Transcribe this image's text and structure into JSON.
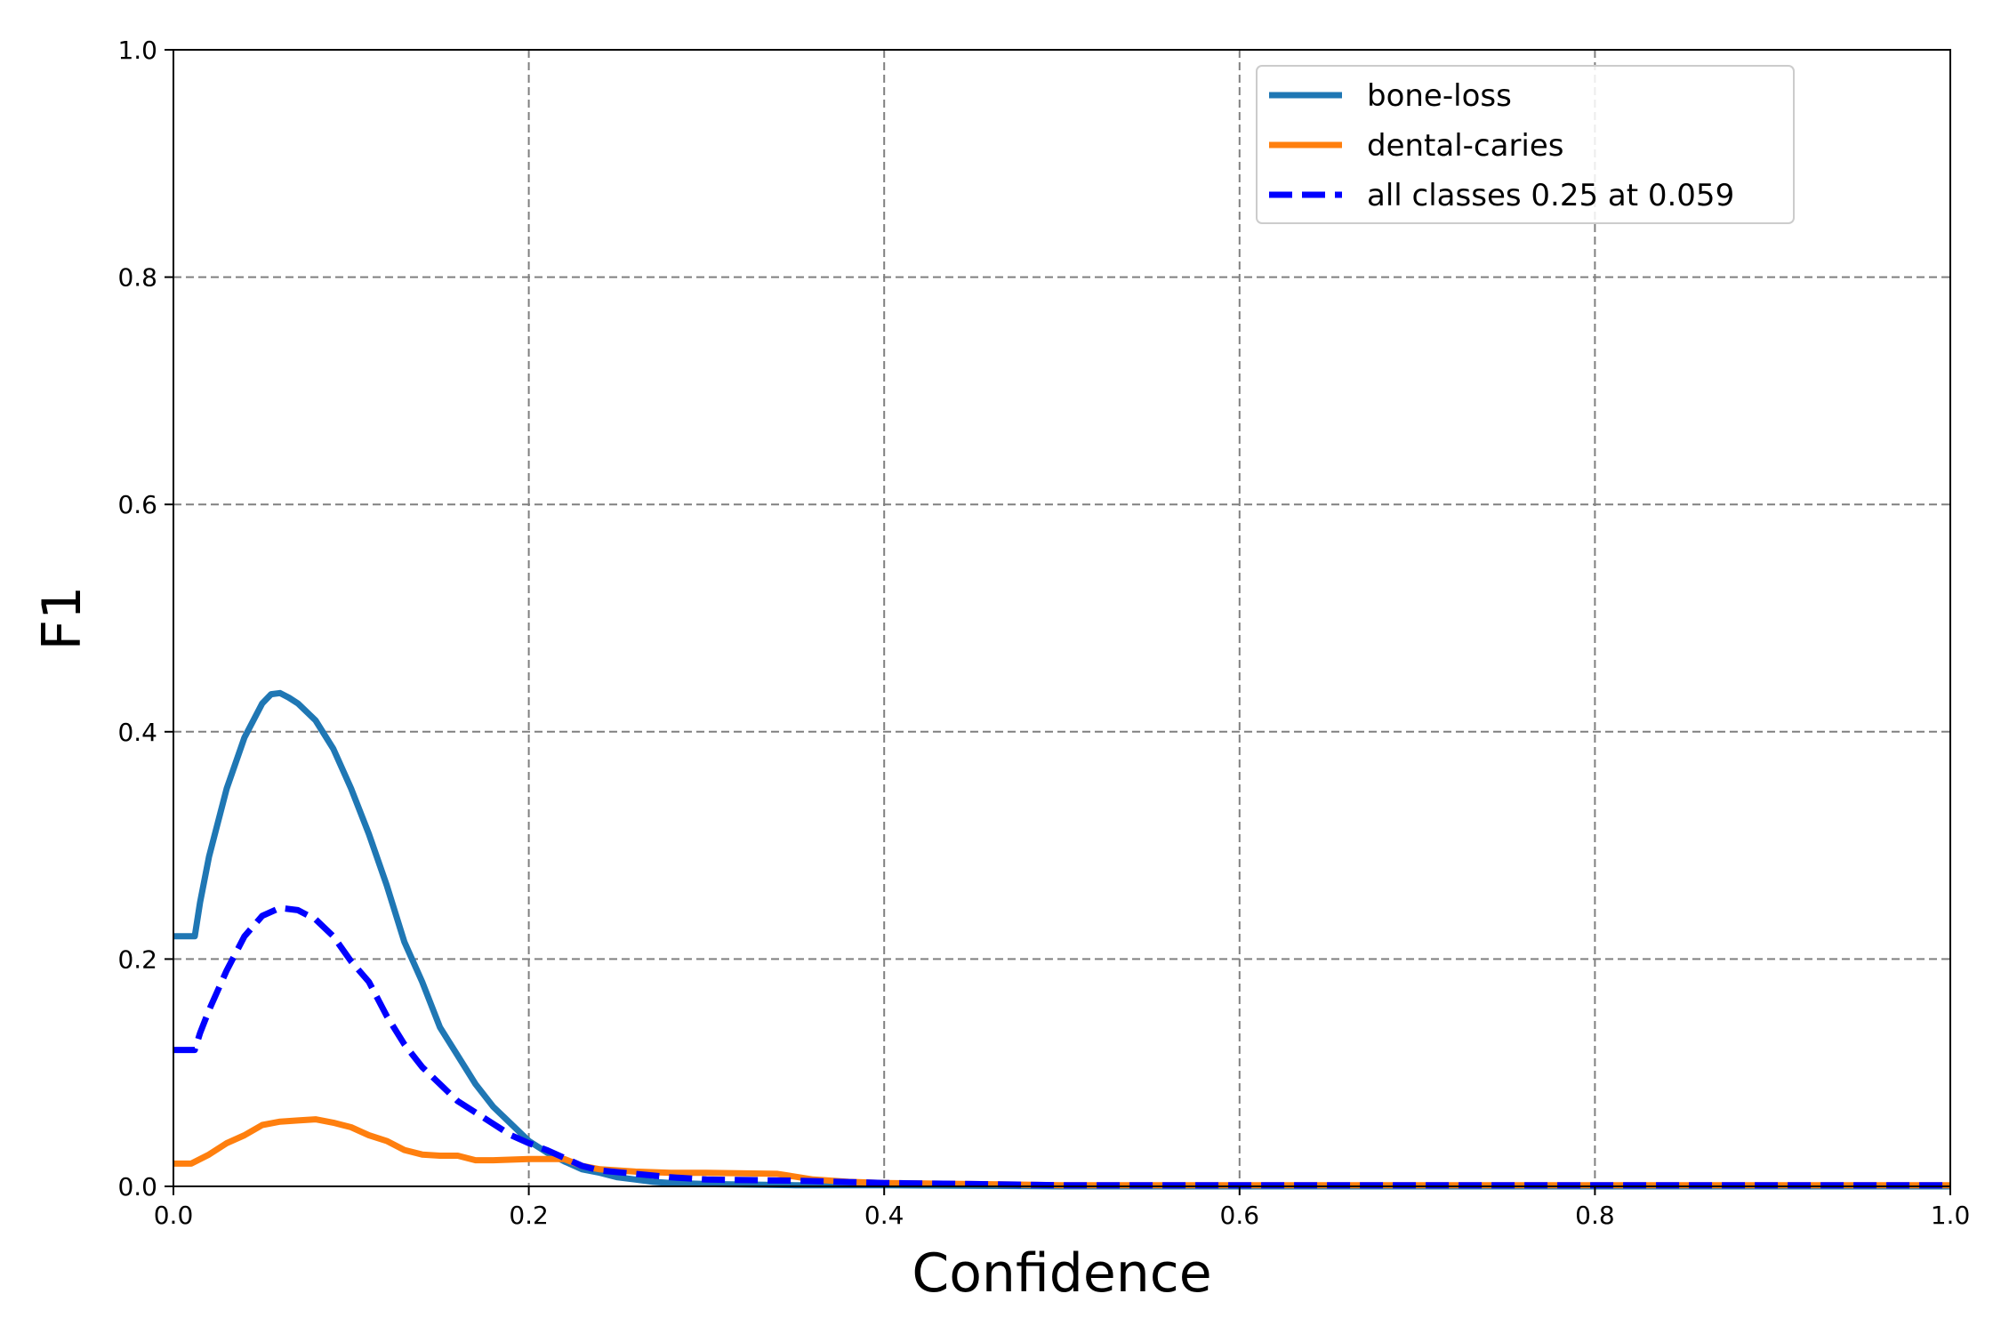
{
  "chart_data": {
    "type": "line",
    "title": "",
    "xlabel": "Confidence",
    "ylabel": "F1",
    "xlim": [
      0.0,
      1.0
    ],
    "ylim": [
      0.0,
      1.0
    ],
    "xticks": [
      "0.0",
      "0.2",
      "0.4",
      "0.6",
      "0.8",
      "1.0"
    ],
    "yticks": [
      "0.0",
      "0.2",
      "0.4",
      "0.6",
      "0.8",
      "1.0"
    ],
    "grid": true,
    "legend_position": "top-right",
    "series": [
      {
        "name": "bone-loss",
        "color": "#1f77b4",
        "style": "solid",
        "x": [
          0.0,
          0.012,
          0.015,
          0.02,
          0.03,
          0.04,
          0.05,
          0.055,
          0.06,
          0.065,
          0.07,
          0.08,
          0.09,
          0.1,
          0.11,
          0.12,
          0.13,
          0.14,
          0.15,
          0.16,
          0.17,
          0.18,
          0.19,
          0.2,
          0.21,
          0.22,
          0.23,
          0.24,
          0.25,
          0.26,
          0.27,
          0.28,
          0.3,
          0.35,
          0.4,
          0.5,
          0.6,
          0.7,
          0.8,
          0.9,
          1.0
        ],
        "y": [
          0.22,
          0.22,
          0.25,
          0.29,
          0.35,
          0.395,
          0.425,
          0.433,
          0.434,
          0.43,
          0.425,
          0.41,
          0.385,
          0.35,
          0.31,
          0.265,
          0.215,
          0.18,
          0.14,
          0.115,
          0.09,
          0.07,
          0.055,
          0.04,
          0.03,
          0.022,
          0.015,
          0.012,
          0.008,
          0.006,
          0.004,
          0.003,
          0.002,
          0.001,
          0.001,
          0.0,
          0.0,
          0.0,
          0.0,
          0.0,
          0.0
        ]
      },
      {
        "name": "dental-caries",
        "color": "#ff7f0e",
        "style": "solid",
        "x": [
          0.0,
          0.01,
          0.02,
          0.03,
          0.04,
          0.05,
          0.06,
          0.07,
          0.08,
          0.09,
          0.1,
          0.11,
          0.12,
          0.13,
          0.14,
          0.15,
          0.16,
          0.17,
          0.18,
          0.2,
          0.22,
          0.23,
          0.24,
          0.26,
          0.28,
          0.3,
          0.34,
          0.36,
          0.38,
          0.4,
          0.45,
          0.5,
          0.6,
          0.7,
          0.8,
          0.9,
          1.0
        ],
        "y": [
          0.02,
          0.02,
          0.028,
          0.038,
          0.045,
          0.054,
          0.057,
          0.058,
          0.059,
          0.056,
          0.052,
          0.045,
          0.04,
          0.032,
          0.028,
          0.027,
          0.027,
          0.023,
          0.023,
          0.024,
          0.024,
          0.018,
          0.015,
          0.013,
          0.012,
          0.012,
          0.011,
          0.006,
          0.004,
          0.003,
          0.002,
          0.001,
          0.001,
          0.001,
          0.001,
          0.001,
          0.001
        ]
      },
      {
        "name": "all classes 0.25 at 0.059",
        "color": "#0000ff",
        "style": "dashed",
        "x": [
          0.0,
          0.012,
          0.015,
          0.02,
          0.03,
          0.04,
          0.05,
          0.06,
          0.07,
          0.08,
          0.09,
          0.1,
          0.11,
          0.12,
          0.13,
          0.14,
          0.15,
          0.16,
          0.17,
          0.18,
          0.19,
          0.2,
          0.21,
          0.22,
          0.23,
          0.24,
          0.26,
          0.28,
          0.3,
          0.35,
          0.4,
          0.45,
          0.5,
          0.6,
          0.7,
          0.8,
          0.9,
          1.0
        ],
        "y": [
          0.12,
          0.12,
          0.135,
          0.155,
          0.19,
          0.22,
          0.238,
          0.245,
          0.243,
          0.235,
          0.22,
          0.198,
          0.18,
          0.15,
          0.125,
          0.105,
          0.09,
          0.075,
          0.065,
          0.055,
          0.045,
          0.038,
          0.032,
          0.025,
          0.018,
          0.014,
          0.011,
          0.008,
          0.006,
          0.005,
          0.003,
          0.002,
          0.001,
          0.001,
          0.001,
          0.001,
          0.001,
          0.001
        ]
      }
    ]
  }
}
